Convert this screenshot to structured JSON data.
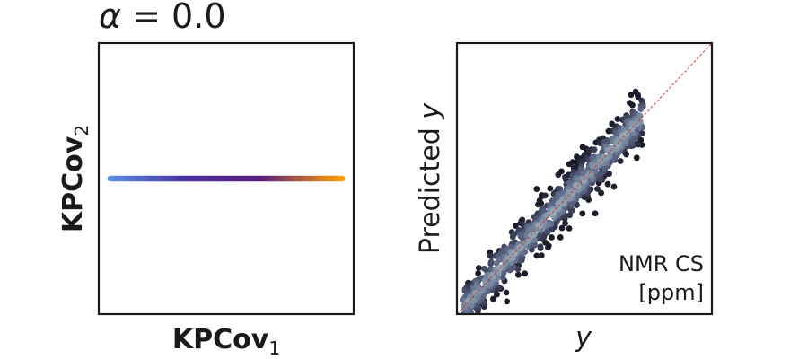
{
  "title": {
    "alpha": "α",
    "eq": " = 0.0"
  },
  "colors": {
    "axis": "#1a1a1a",
    "left_gradient": [
      "#5a8fe8",
      "#4b2f9c",
      "#5a1f7a",
      "#ff9d00"
    ],
    "right_dark": "#1b1c2a",
    "right_mid": "#5b6385",
    "right_light": "#a9c7c8",
    "diagonal": "#d62728"
  },
  "chart_data": [
    {
      "type": "scatter",
      "xlabel": {
        "base": "KPCov",
        "sub": "1"
      },
      "ylabel": {
        "base": "KPCov",
        "sub": "2"
      },
      "ticks": "none",
      "series": [
        {
          "x_range": [
            0.0,
            1.0
          ],
          "y": 0.0,
          "n_points": 220,
          "color_by": "target value"
        }
      ],
      "xlim": [
        -0.05,
        1.05
      ],
      "ylim": [
        -0.55,
        0.55
      ]
    },
    {
      "type": "scatter",
      "xlabel": "y",
      "ylabel": {
        "text": "Predicted ",
        "var": "y"
      },
      "annotation": [
        "NMR CS",
        "[ppm]"
      ],
      "ticks": "none",
      "xlim": [
        0,
        10
      ],
      "ylim": [
        0,
        10
      ],
      "reference_line": "y = x",
      "series": [
        {
          "x_range": [
            0.2,
            7.3
          ],
          "slope": 1.0,
          "noise": 0.35,
          "n_points": 900
        }
      ]
    }
  ]
}
